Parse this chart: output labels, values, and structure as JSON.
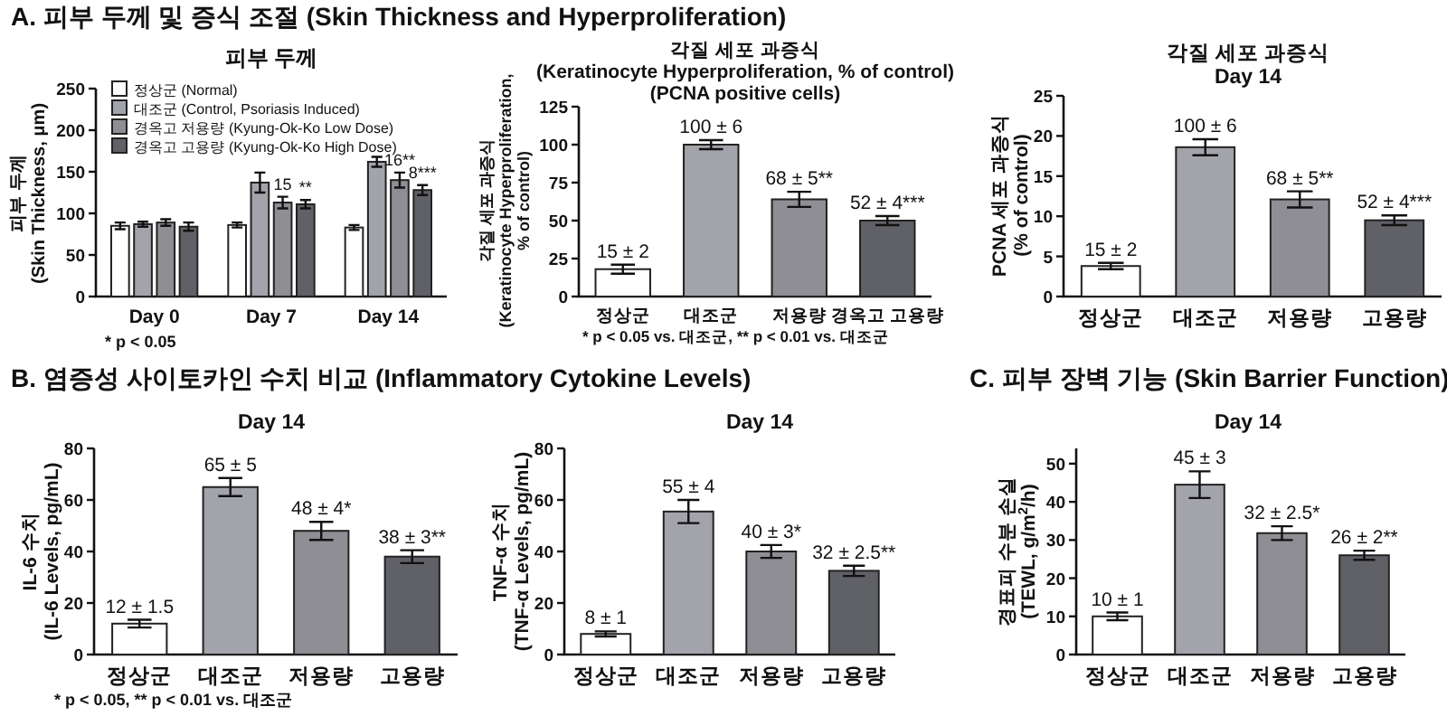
{
  "chart_data": [
    {
      "type": "bar",
      "title": "피부 두께",
      "ylabel": "피부 두께\n(Skin Thickness, μm)",
      "categories": [
        "Day 0",
        "Day 7",
        "Day 14"
      ],
      "ylim": [
        0,
        250
      ],
      "yticks": [
        0,
        50,
        100,
        150,
        200,
        250
      ],
      "legend": "top left",
      "series": [
        {
          "name": "정상군 (Normal)",
          "color": "#ffffff",
          "values": [
            85,
            86,
            83
          ],
          "errors": [
            4,
            3,
            3
          ],
          "value_labels": [
            null,
            null,
            null
          ]
        },
        {
          "name": "대조군 (Control, Psoriasis Induced)",
          "color": "#a3a3ab",
          "values": [
            87,
            137,
            162
          ],
          "errors": [
            3,
            12,
            6
          ],
          "value_labels": [
            null,
            null,
            null
          ]
        },
        {
          "name": "경옥고 저용량 (Kyung-Ok-Ko Low Dose)",
          "color": "#8e8e94",
          "values": [
            89,
            113,
            140
          ],
          "errors": [
            4,
            7,
            9
          ]
        },
        {
          "name": "경옥고 고용량 (Kyung-Ok-Ko High Dose)",
          "color": "#606067",
          "values": [
            84,
            111,
            128
          ],
          "errors": [
            5,
            5,
            6
          ],
          "value_labels": [
            null,
            "**",
            null
          ]
        }
      ],
      "annotations": [
        "A. 피부 두께 및 증식 조절 (Skin Thickness and Hyperproliferation)",
        "* p < 0.05",
        {
          "text": "15",
          "x": "Day 7",
          "y": 120
        },
        {
          "text": "16**",
          "x": "Day 14",
          "y": 149
        },
        {
          "text": "8***",
          "x": "Day 14",
          "y": 134
        }
      ]
    },
    {
      "type": "bar",
      "title": "각질 세포 과증식\n(Keratinocyte Hyperproliferation, % of control)\n(PCNA positive cells)",
      "ylabel": "각질 세포 과증식\n(Keratinocyte Hyperproliferation,\n% of control)",
      "categories": [
        "정상군",
        "대조군",
        "저용량",
        "경옥고 고용량"
      ],
      "values": [
        18,
        100,
        64,
        50
      ],
      "errors": [
        3,
        3,
        5,
        3
      ],
      "colors": [
        "#ffffff",
        "#a3a3ab",
        "#8e8e94",
        "#606067"
      ],
      "ylim": [
        0,
        125
      ],
      "yticks": [
        0,
        25,
        50,
        75,
        100,
        125
      ],
      "annotations": [
        "* p < 0.05 vs. 대조군, ** p < 0.01 vs. 대조군",
        {
          "text": "15 ± 2",
          "x": "정상군",
          "y": 21
        },
        {
          "text": "100 ± 6",
          "x": "대조군",
          "y": 103
        },
        {
          "text": "68 ± 5**",
          "x": "저용량",
          "y": 69
        },
        {
          "text": "52 ± 4***",
          "x": "경옥고 고용량",
          "y": 53
        }
      ]
    },
    {
      "type": "bar",
      "title": "각질 세포 과증식\nDay 14",
      "ylabel": "PCNA 세포 과증식\n(% of control)",
      "categories": [
        "정상군",
        "대조군",
        "저용량",
        "고용량"
      ],
      "values": [
        3.8,
        18.6,
        12.1,
        9.5
      ],
      "errors": [
        0.4,
        1,
        1,
        0.6
      ],
      "colors": [
        "#ffffff",
        "#a3a3ab",
        "#8e8e94",
        "#606067"
      ],
      "ylim": [
        0,
        25
      ],
      "yticks": [
        0,
        5,
        10,
        15,
        20,
        25
      ],
      "annotations": [
        {
          "text": "15 ± 2",
          "x": "정상군",
          "y": 4.2
        },
        {
          "text": "100 ± 6",
          "x": "대조군",
          "y": 19.6
        },
        {
          "text": "68 ± 5**",
          "x": "저용량",
          "y": 13.1
        },
        {
          "text": "52 ± 4***",
          "x": "고용량",
          "y": 10.1
        }
      ]
    },
    {
      "type": "bar",
      "title": "Day 14",
      "ylabel": "IL-6 수치\n(IL-6 Levels, pg/mL)",
      "categories": [
        "정상군",
        "대조군",
        "저용량",
        "고용량"
      ],
      "values": [
        12,
        65,
        48,
        38
      ],
      "errors": [
        1.5,
        3.5,
        3.5,
        2.5
      ],
      "colors": [
        "#ffffff",
        "#a3a3ab",
        "#8e8e94",
        "#606067"
      ],
      "value_labels": [
        "12 ± 1.5",
        "65 ± 5",
        "48 ± 4*",
        "38 ± 3**"
      ],
      "ylim": [
        0,
        80
      ],
      "yticks": [
        0,
        20,
        40,
        60,
        80
      ],
      "annotations": [
        "B. 염증성 사이토카인 수치 비교 (Inflammatory Cytokine Levels)",
        "* p < 0.05, ** p < 0.01 vs. 대조군"
      ]
    },
    {
      "type": "bar",
      "title": "Day 14",
      "ylabel": "TNF-α 수치\n(TNF-α Levels, pg/mL)",
      "categories": [
        "정상군",
        "대조군",
        "저용량",
        "고용량"
      ],
      "values": [
        8,
        55.5,
        40,
        32.5
      ],
      "errors": [
        1,
        4.5,
        2.5,
        2
      ],
      "colors": [
        "#ffffff",
        "#a3a3ab",
        "#8e8e94",
        "#606067"
      ],
      "value_labels": [
        "8 ± 1",
        "55 ± 4",
        "40 ± 3*",
        "32 ± 2.5**"
      ],
      "ylim": [
        0,
        80
      ],
      "yticks": [
        0,
        20,
        40,
        60,
        80
      ]
    },
    {
      "type": "bar",
      "title": "Day 14",
      "ylabel": "경표피 수분 손실\n(TEWL, g/m$^{2}$/h)",
      "categories": [
        "정상군",
        "대조군",
        "저용량",
        "고용량"
      ],
      "values": [
        10,
        44.5,
        31.8,
        26
      ],
      "errors": [
        1,
        3.5,
        1.8,
        1.2
      ],
      "colors": [
        "#ffffff",
        "#a3a3ab",
        "#8e8e94",
        "#606067"
      ],
      "value_labels": [
        "10 ± 1",
        "45 ± 3",
        "32 ± 2.5*",
        "26 ± 2**"
      ],
      "ylim": [
        0,
        54
      ],
      "yticks": [
        0,
        10,
        20,
        30,
        40,
        50
      ],
      "annotations": [
        "C. 피부 장벽 기능 (Skin Barrier Function)"
      ]
    }
  ]
}
